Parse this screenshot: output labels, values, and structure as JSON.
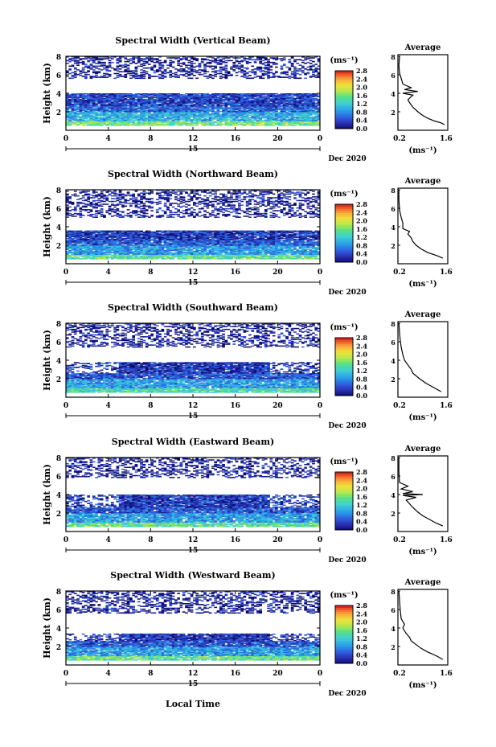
{
  "figure": {
    "xlabel": "Local Time",
    "date_label": "Dec 2020",
    "day_label": "15"
  },
  "chart_data": [
    {
      "type": "heatmap",
      "title": "Spectral Width (Vertical Beam)",
      "ylabel": "Height (km)",
      "ylim": [
        0,
        8
      ],
      "xlim": [
        0,
        24
      ],
      "x_ticks": [
        "0",
        "4",
        "8",
        "12",
        "16",
        "20",
        "0"
      ],
      "y_ticks": [
        "2",
        "4",
        "6",
        "8"
      ],
      "colorbar": {
        "label": "(ms⁻¹)",
        "range": [
          0,
          2.8
        ],
        "ticks": [
          "0.0",
          "0.4",
          "0.8",
          "1.2",
          "1.6",
          "2.0",
          "2.4",
          "2.8"
        ]
      },
      "layers": [
        {
          "from_km": 0.5,
          "to_km": 1.0,
          "width_ms": 1.6
        },
        {
          "from_km": 1.0,
          "to_km": 2.0,
          "width_ms": 1.0
        },
        {
          "from_km": 2.0,
          "to_km": 2.6,
          "width_ms": 0.6
        },
        {
          "from_km": 2.6,
          "to_km": 4.0,
          "width_ms": 0.4
        },
        {
          "from_km": 5.6,
          "to_km": 8.0,
          "width_ms": 0.15
        }
      ],
      "average": {
        "title": "Average",
        "xlabel": "(ms⁻¹)",
        "xticks": [
          "0.2",
          "1.6"
        ],
        "yticks": [
          "2",
          "4",
          "6",
          "8"
        ],
        "profile": [
          [
            1.55,
            0.6
          ],
          [
            1.45,
            0.8
          ],
          [
            1.25,
            1.0
          ],
          [
            1.05,
            1.3
          ],
          [
            0.9,
            1.6
          ],
          [
            0.75,
            2.0
          ],
          [
            0.6,
            2.5
          ],
          [
            0.5,
            3.0
          ],
          [
            0.45,
            3.3
          ],
          [
            0.6,
            3.8
          ],
          [
            0.3,
            4.0
          ],
          [
            0.75,
            4.2
          ],
          [
            0.35,
            4.4
          ],
          [
            0.55,
            4.6
          ],
          [
            0.3,
            5.0
          ],
          [
            0.25,
            5.6
          ],
          [
            0.2,
            6.2
          ],
          [
            0.18,
            7.0
          ],
          [
            0.2,
            8.0
          ]
        ]
      }
    },
    {
      "type": "heatmap",
      "title": "Spectral Width (Northward Beam)",
      "ylabel": "Height (km)",
      "ylim": [
        0,
        8
      ],
      "xlim": [
        0,
        24
      ],
      "x_ticks": [
        "0",
        "4",
        "8",
        "12",
        "16",
        "20",
        "0"
      ],
      "y_ticks": [
        "2",
        "4",
        "6",
        "8"
      ],
      "colorbar": {
        "label": "(ms⁻¹)",
        "range": [
          0,
          2.8
        ],
        "ticks": [
          "0.0",
          "0.4",
          "0.8",
          "1.2",
          "1.6",
          "2.0",
          "2.4",
          "2.8"
        ]
      },
      "layers": [
        {
          "from_km": 0.5,
          "to_km": 1.0,
          "width_ms": 1.5
        },
        {
          "from_km": 1.0,
          "to_km": 2.0,
          "width_ms": 0.9
        },
        {
          "from_km": 2.0,
          "to_km": 2.6,
          "width_ms": 0.5
        },
        {
          "from_km": 2.6,
          "to_km": 3.6,
          "width_ms": 0.35
        },
        {
          "from_km": 5.0,
          "to_km": 8.0,
          "width_ms": 0.15
        }
      ],
      "average": {
        "title": "Average",
        "xlabel": "(ms⁻¹)",
        "xticks": [
          "0.2",
          "1.6"
        ],
        "yticks": [
          "2",
          "4",
          "6",
          "8"
        ],
        "profile": [
          [
            1.5,
            0.6
          ],
          [
            1.3,
            0.9
          ],
          [
            1.05,
            1.2
          ],
          [
            0.85,
            1.6
          ],
          [
            0.7,
            2.0
          ],
          [
            0.6,
            2.4
          ],
          [
            0.55,
            2.8
          ],
          [
            0.45,
            3.2
          ],
          [
            0.5,
            3.5
          ],
          [
            0.3,
            3.8
          ],
          [
            0.3,
            4.4
          ],
          [
            0.25,
            5.0
          ],
          [
            0.2,
            5.8
          ],
          [
            0.18,
            7.0
          ],
          [
            0.18,
            8.0
          ]
        ]
      }
    },
    {
      "type": "heatmap",
      "title": "Spectral Width (Southward Beam)",
      "ylabel": "Height (km)",
      "ylim": [
        0,
        8
      ],
      "xlim": [
        0,
        24
      ],
      "x_ticks": [
        "0",
        "4",
        "8",
        "12",
        "16",
        "20",
        "0"
      ],
      "y_ticks": [
        "2",
        "4",
        "6",
        "8"
      ],
      "colorbar": {
        "label": "(ms⁻¹)",
        "range": [
          0,
          2.8
        ],
        "ticks": [
          "0.0",
          "0.4",
          "0.8",
          "1.2",
          "1.6",
          "2.0",
          "2.4",
          "2.8"
        ]
      },
      "layers": [
        {
          "from_km": 0.5,
          "to_km": 1.0,
          "width_ms": 1.4
        },
        {
          "from_km": 1.0,
          "to_km": 2.0,
          "width_ms": 0.9
        },
        {
          "from_km": 2.0,
          "to_km": 2.6,
          "width_ms": 0.5
        },
        {
          "from_km": 2.6,
          "to_km": 3.8,
          "width_ms": 0.3
        },
        {
          "from_km": 5.4,
          "to_km": 8.0,
          "width_ms": 0.15
        }
      ],
      "average": {
        "title": "Average",
        "xlabel": "(ms⁻¹)",
        "xticks": [
          "0.2",
          "1.6"
        ],
        "yticks": [
          "2",
          "4",
          "6",
          "8"
        ],
        "profile": [
          [
            1.45,
            0.6
          ],
          [
            1.25,
            1.0
          ],
          [
            1.0,
            1.5
          ],
          [
            0.8,
            2.0
          ],
          [
            0.6,
            2.6
          ],
          [
            0.55,
            3.0
          ],
          [
            0.45,
            3.5
          ],
          [
            0.35,
            4.0
          ],
          [
            0.3,
            4.6
          ],
          [
            0.25,
            5.4
          ],
          [
            0.22,
            6.2
          ],
          [
            0.2,
            7.0
          ],
          [
            0.18,
            8.0
          ]
        ]
      }
    },
    {
      "type": "heatmap",
      "title": "Spectral Width (Eastward Beam)",
      "ylabel": "Height (km)",
      "ylim": [
        0,
        8
      ],
      "xlim": [
        0,
        24
      ],
      "x_ticks": [
        "0",
        "4",
        "8",
        "12",
        "16",
        "20",
        "0"
      ],
      "y_ticks": [
        "2",
        "4",
        "6",
        "8"
      ],
      "colorbar": {
        "label": "(ms⁻¹)",
        "range": [
          0,
          2.8
        ],
        "ticks": [
          "0.0",
          "0.4",
          "0.8",
          "1.2",
          "1.6",
          "2.0",
          "2.4",
          "2.8"
        ]
      },
      "layers": [
        {
          "from_km": 0.5,
          "to_km": 1.0,
          "width_ms": 1.5
        },
        {
          "from_km": 1.0,
          "to_km": 2.0,
          "width_ms": 0.9
        },
        {
          "from_km": 2.0,
          "to_km": 2.6,
          "width_ms": 0.5
        },
        {
          "from_km": 2.6,
          "to_km": 4.0,
          "width_ms": 0.35
        },
        {
          "from_km": 5.8,
          "to_km": 8.0,
          "width_ms": 0.15
        }
      ],
      "average": {
        "title": "Average",
        "xlabel": "(ms⁻¹)",
        "xticks": [
          "0.2",
          "1.6"
        ],
        "yticks": [
          "2",
          "4",
          "6",
          "8"
        ],
        "profile": [
          [
            1.5,
            0.6
          ],
          [
            1.3,
            0.9
          ],
          [
            1.1,
            1.3
          ],
          [
            0.9,
            1.7
          ],
          [
            0.75,
            2.1
          ],
          [
            0.6,
            2.6
          ],
          [
            0.5,
            3.0
          ],
          [
            0.4,
            3.4
          ],
          [
            0.7,
            3.7
          ],
          [
            0.3,
            3.9
          ],
          [
            0.9,
            4.0
          ],
          [
            0.3,
            4.1
          ],
          [
            0.6,
            4.3
          ],
          [
            0.25,
            4.6
          ],
          [
            0.45,
            4.9
          ],
          [
            0.2,
            5.3
          ],
          [
            0.18,
            6.5
          ],
          [
            0.18,
            8.0
          ]
        ]
      }
    },
    {
      "type": "heatmap",
      "title": "Spectral Width (Westward Beam)",
      "ylabel": "Height (km)",
      "ylim": [
        0,
        8
      ],
      "xlim": [
        0,
        24
      ],
      "x_ticks": [
        "0",
        "4",
        "8",
        "12",
        "16",
        "20",
        "0"
      ],
      "y_ticks": [
        "2",
        "4",
        "6",
        "8"
      ],
      "colorbar": {
        "label": "(ms⁻¹)",
        "range": [
          0,
          2.8
        ],
        "ticks": [
          "0.0",
          "0.4",
          "0.8",
          "1.2",
          "1.6",
          "2.0",
          "2.4",
          "2.8"
        ]
      },
      "layers": [
        {
          "from_km": 0.5,
          "to_km": 1.0,
          "width_ms": 1.5
        },
        {
          "from_km": 1.0,
          "to_km": 2.0,
          "width_ms": 0.9
        },
        {
          "from_km": 2.0,
          "to_km": 2.6,
          "width_ms": 0.5
        },
        {
          "from_km": 2.6,
          "to_km": 3.4,
          "width_ms": 0.3
        },
        {
          "from_km": 5.6,
          "to_km": 8.0,
          "width_ms": 0.15
        }
      ],
      "average": {
        "title": "Average",
        "xlabel": "(ms⁻¹)",
        "xticks": [
          "0.2",
          "1.6"
        ],
        "yticks": [
          "2",
          "4",
          "6",
          "8"
        ],
        "profile": [
          [
            1.5,
            0.6
          ],
          [
            1.3,
            1.0
          ],
          [
            1.05,
            1.4
          ],
          [
            0.85,
            1.8
          ],
          [
            0.7,
            2.2
          ],
          [
            0.55,
            2.6
          ],
          [
            0.5,
            3.0
          ],
          [
            0.4,
            3.4
          ],
          [
            0.3,
            4.0
          ],
          [
            0.35,
            4.4
          ],
          [
            0.25,
            5.0
          ],
          [
            0.22,
            6.0
          ],
          [
            0.2,
            7.0
          ],
          [
            0.18,
            8.0
          ]
        ]
      }
    }
  ]
}
